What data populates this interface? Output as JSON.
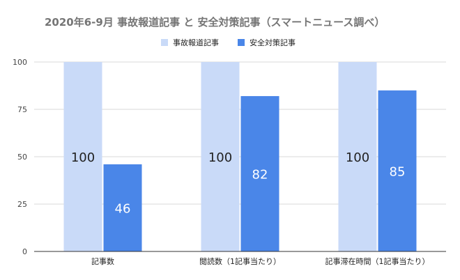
{
  "chart_data": {
    "type": "bar",
    "title": "2020年6-9月  事故報道記事 と 安全対策記事（スマートニュース調べ）",
    "categories": [
      "記事数",
      "閲読数（1記事当たり）",
      "記事滞在時間（1記事当たり）"
    ],
    "series": [
      {
        "name": "事故報道記事",
        "values": [
          100,
          100,
          100
        ],
        "color": "#c9daf8"
      },
      {
        "name": "安全対策記事",
        "values": [
          46,
          82,
          85
        ],
        "color": "#4a86e8"
      }
    ],
    "yticks": [
      0,
      25,
      50,
      75,
      100
    ],
    "ylim": [
      0,
      100
    ],
    "grid": true,
    "legend": "top-center",
    "data_labels": true
  }
}
